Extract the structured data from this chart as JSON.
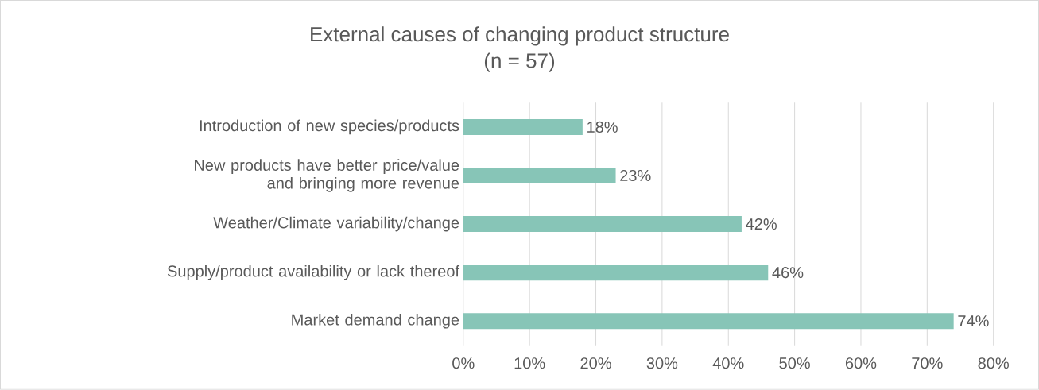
{
  "chart_data": {
    "type": "bar",
    "orientation": "horizontal",
    "title": "External causes of changing product structure",
    "subtitle": "(n = 57)",
    "categories": [
      "Introduction of new species/products",
      "New products have better price/value and bringing more revenue",
      "Weather/Climate variability/change",
      "Supply/product availability or lack thereof",
      "Market demand change"
    ],
    "values": [
      18,
      23,
      42,
      46,
      74
    ],
    "value_labels": [
      "18%",
      "23%",
      "42%",
      "46%",
      "74%"
    ],
    "color": "#87c5b7",
    "xlim": [
      0,
      80
    ],
    "xticks": [
      {
        "value": 0,
        "label": "0%"
      },
      {
        "value": 10,
        "label": "10%"
      },
      {
        "value": 20,
        "label": "20%"
      },
      {
        "value": 30,
        "label": "30%"
      },
      {
        "value": 40,
        "label": "40%"
      },
      {
        "value": 50,
        "label": "50%"
      },
      {
        "value": 60,
        "label": "60%"
      },
      {
        "value": 70,
        "label": "70%"
      },
      {
        "value": 80,
        "label": "80%"
      }
    ],
    "grid": "x"
  }
}
